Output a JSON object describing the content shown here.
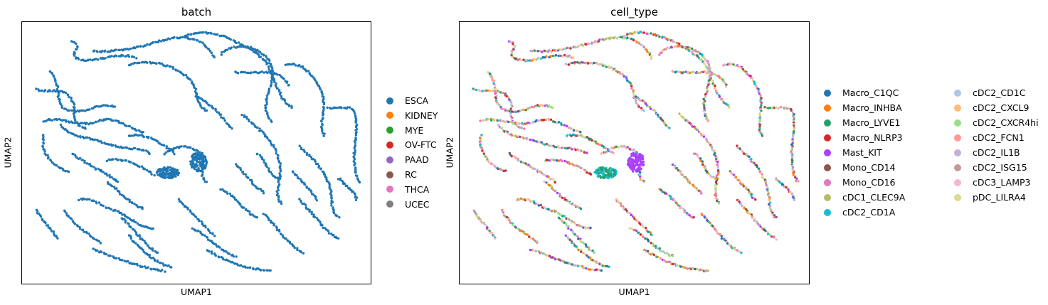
{
  "chart_data": [
    {
      "type": "scatter",
      "title": "batch",
      "xlabel": "UMAP1",
      "ylabel": "UMAP2",
      "grid": false,
      "legend_placement": "right",
      "series": [
        {
          "name": "ESCA",
          "color": "#1f77b4"
        },
        {
          "name": "KIDNEY",
          "color": "#ff7f0e"
        },
        {
          "name": "MYE",
          "color": "#2ca02c"
        },
        {
          "name": "OV-FTC",
          "color": "#d62728"
        },
        {
          "name": "PAAD",
          "color": "#9467bd"
        },
        {
          "name": "RC",
          "color": "#8c564b"
        },
        {
          "name": "THCA",
          "color": "#e377c2"
        },
        {
          "name": "UCEC",
          "color": "#7f7f7f"
        }
      ]
    },
    {
      "type": "scatter",
      "title": "cell_type",
      "xlabel": "UMAP1",
      "ylabel": "UMAP2",
      "grid": false,
      "legend_placement": "right",
      "series": [
        {
          "name": "Macro_C1QC",
          "color": "#1f77b4"
        },
        {
          "name": "Macro_INHBA",
          "color": "#ff7f0e"
        },
        {
          "name": "Macro_LYVE1",
          "color": "#279e68"
        },
        {
          "name": "Macro_NLRP3",
          "color": "#d62728"
        },
        {
          "name": "Mast_KIT",
          "color": "#aa40fc"
        },
        {
          "name": "Mono_CD14",
          "color": "#8c564b"
        },
        {
          "name": "Mono_CD16",
          "color": "#e377c2"
        },
        {
          "name": "cDC1_CLEC9A",
          "color": "#b5bd61"
        },
        {
          "name": "cDC2_CD1A",
          "color": "#17becf"
        },
        {
          "name": "cDC2_CD1C",
          "color": "#aec7e8"
        },
        {
          "name": "cDC2_CXCL9",
          "color": "#ffbb78"
        },
        {
          "name": "cDC2_CXCR4hi",
          "color": "#98df8a"
        },
        {
          "name": "cDC2_FCN1",
          "color": "#ff9896"
        },
        {
          "name": "cDC2_IL1B",
          "color": "#c5b0d5"
        },
        {
          "name": "cDC2_ISG15",
          "color": "#c49c94"
        },
        {
          "name": "cDC3_LAMP3",
          "color": "#f7b6d2"
        },
        {
          "name": "pDC_LILRA4",
          "color": "#dbdb8d"
        }
      ]
    }
  ]
}
